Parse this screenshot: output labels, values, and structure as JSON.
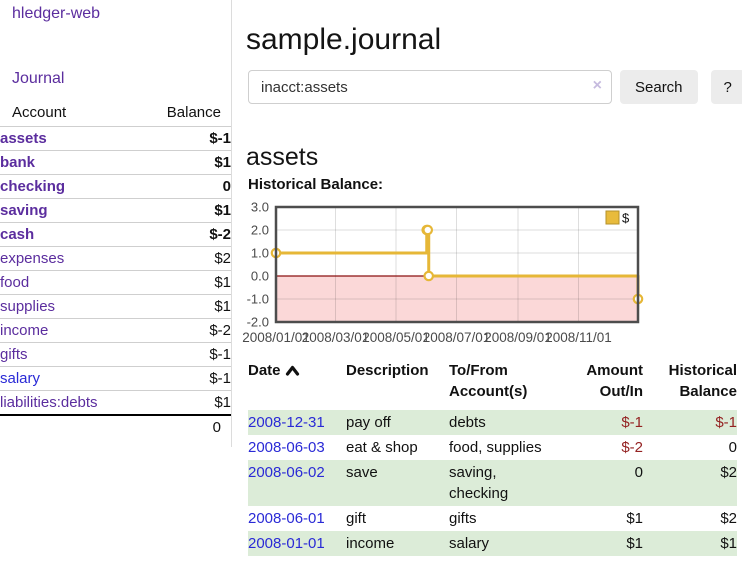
{
  "brand": "hledger-web",
  "nav": {
    "journal_label": "Journal"
  },
  "sidebar": {
    "col_account": "Account",
    "col_balance": "Balance",
    "accounts": [
      {
        "name": "assets",
        "balance": "$-1"
      },
      {
        "name": "bank",
        "balance": "$1"
      },
      {
        "name": "checking",
        "balance": "0"
      },
      {
        "name": "saving",
        "balance": "$1"
      },
      {
        "name": "cash",
        "balance": "$-2"
      },
      {
        "name": "expenses",
        "balance": "$2"
      },
      {
        "name": "food",
        "balance": "$1"
      },
      {
        "name": "supplies",
        "balance": "$1"
      },
      {
        "name": "income",
        "balance": "$-2"
      },
      {
        "name": "gifts",
        "balance": "$-1"
      },
      {
        "name": "salary",
        "balance": "$-1"
      },
      {
        "name": "liabilities:debts",
        "balance": "$1"
      }
    ],
    "total": "0"
  },
  "header": {
    "title": "sample.journal"
  },
  "search": {
    "value": "inacct:assets",
    "clear_icon": "×",
    "button_label": "Search",
    "help_label": "?"
  },
  "account_page": {
    "heading": "assets",
    "chart_title": "Historical Balance:"
  },
  "chart_data": {
    "type": "line",
    "step": true,
    "title": "Historical Balance",
    "ylim": [
      -2,
      3
    ],
    "y_ticks": [
      "3.0",
      "2.0",
      "1.0",
      "0.0",
      "-1.0",
      "-2.0"
    ],
    "x_range_days": 365,
    "x_ticks": [
      {
        "label": "2008/01/01",
        "day": 0
      },
      {
        "label": "2008/03/01",
        "day": 60
      },
      {
        "label": "2008/05/01",
        "day": 121
      },
      {
        "label": "2008/07/01",
        "day": 182
      },
      {
        "label": "2008/09/01",
        "day": 244
      },
      {
        "label": "2008/11/01",
        "day": 305
      }
    ],
    "legend": [
      {
        "label": "$",
        "color": "#e8bb3c"
      }
    ],
    "series": [
      {
        "name": "$",
        "points": [
          {
            "date": "2008-01-01",
            "day": 0,
            "value": 1
          },
          {
            "date": "2008-06-01",
            "day": 152,
            "value": 2
          },
          {
            "date": "2008-06-02",
            "day": 153,
            "value": 2
          },
          {
            "date": "2008-06-03",
            "day": 154,
            "value": 0
          },
          {
            "date": "2008-12-31",
            "day": 365,
            "value": -1
          }
        ]
      }
    ],
    "line_color": "#e6b737",
    "marker_fill": "#ffffff",
    "negative_region_color": "#fbd8d8",
    "zero_line_color": "#8b1010",
    "grid_on": true,
    "legend_position": "top-right"
  },
  "register": {
    "headers": {
      "date": "Date",
      "description": "Description",
      "tofrom": "To/From\nAccount(s)",
      "amount": "Amount\nOut/In",
      "balance": "Historical\nBalance"
    },
    "rows": [
      {
        "date": "2008-12-31",
        "description": "pay off",
        "tofrom": "debts",
        "amount": "$-1",
        "balance": "$-1"
      },
      {
        "date": "2008-06-03",
        "description": "eat & shop",
        "tofrom": "food, supplies",
        "amount": "$-2",
        "balance": "0"
      },
      {
        "date": "2008-06-02",
        "description": "save",
        "tofrom": "saving,\nchecking",
        "amount": "0",
        "balance": "$2"
      },
      {
        "date": "2008-06-01",
        "description": "gift",
        "tofrom": "gifts",
        "amount": "$1",
        "balance": "$2"
      },
      {
        "date": "2008-01-01",
        "description": "income",
        "tofrom": "salary",
        "amount": "$1",
        "balance": "$1"
      }
    ]
  },
  "colors": {
    "link_purple": "#5b2d9e",
    "link_blue": "#2a2ad6",
    "negative_strong": "#942222",
    "negative_muted": "#b46a6b",
    "row_stripe_green": "#dcecd8"
  }
}
